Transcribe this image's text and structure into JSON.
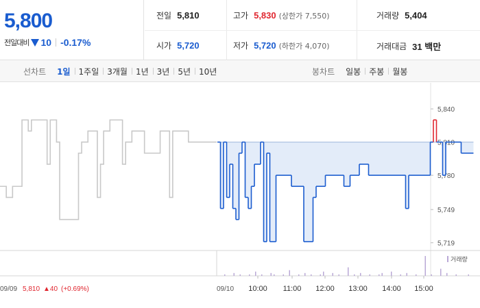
{
  "quote": {
    "price": "5,800",
    "change_label": "전일대비",
    "change_value": "10",
    "change_pct": "-0.17%",
    "items": [
      {
        "label": "전일",
        "value": "5,810"
      },
      {
        "label": "고가",
        "value": "5,830",
        "sub": "(상한가 7,550)"
      },
      {
        "label": "거래량",
        "value": "5,404"
      },
      {
        "label": "시가",
        "value": "5,720"
      },
      {
        "label": "저가",
        "value": "5,720",
        "sub": "(하한가 4,070)"
      },
      {
        "label": "거래대금",
        "value": "31 백만"
      }
    ]
  },
  "line_tabs": {
    "title": "선차트",
    "items": [
      "1일",
      "1주일",
      "3개월",
      "1년",
      "3년",
      "5년",
      "10년"
    ],
    "active": 0
  },
  "candle_tabs": {
    "title": "봉차트",
    "items": [
      "일봉",
      "주봉",
      "월봉"
    ]
  },
  "colors": {
    "up": "#e0262f",
    "down": "#1a5ccf",
    "prev": "#c8c8c8",
    "fill": "#e3ecf9",
    "volume": "#b9a8d6"
  },
  "chart_data": {
    "type": "line",
    "yticks": [
      5840,
      5810,
      5780,
      5749,
      5719
    ],
    "ytick_labels": [
      "5,840",
      "5,810",
      "5,780",
      "5,749",
      "5,719"
    ],
    "ylim": [
      5712,
      5845
    ],
    "baseline": 5810,
    "volume_label": "거래량",
    "prev_day": {
      "label": "09/09",
      "close": "5,810",
      "change": "▲40",
      "change_pct": "(+0.69%)",
      "values": [
        5770,
        5770,
        5760,
        5760,
        5770,
        5770,
        5770,
        5830,
        5830,
        5820,
        5830,
        5830,
        5830,
        5830,
        5830,
        5790,
        5830,
        5830,
        5810,
        5740,
        5740,
        5740,
        5740,
        5740,
        5740,
        5800,
        5810,
        5810,
        5820,
        5820,
        5820,
        5760,
        5790,
        5820,
        5820,
        5830,
        5830,
        5830,
        5830,
        5790,
        5810,
        5810,
        5820,
        5820,
        5820,
        5820,
        5800,
        5800,
        5800,
        5800,
        5800,
        5820,
        5820,
        5820,
        5760,
        5820,
        5820,
        5820,
        5820,
        5820,
        5810,
        5810,
        5810,
        5810,
        5810,
        5810,
        5810,
        5810,
        5810
      ]
    },
    "today": {
      "label": "09/10",
      "times": [
        "10:00",
        "11:00",
        "12:00",
        "13:00",
        "14:00",
        "15:00"
      ],
      "values": [
        5810,
        5750,
        5810,
        5760,
        5790,
        5750,
        5740,
        5800,
        5810,
        5760,
        5750,
        5770,
        5790,
        5790,
        5810,
        5720,
        5800,
        5720,
        5720,
        5780,
        5780,
        5780,
        5780,
        5780,
        5770,
        5770,
        5770,
        5770,
        5720,
        5720,
        5720,
        5760,
        5770,
        5770,
        5770,
        5780,
        5780,
        5780,
        5780,
        5780,
        5780,
        5770,
        5770,
        5780,
        5780,
        5780,
        5790,
        5790,
        5790,
        5780,
        5780,
        5780,
        5780,
        5780,
        5780,
        5780,
        5780,
        5780,
        5780,
        5780,
        5780,
        5750,
        5780,
        5780,
        5780,
        5780,
        5780,
        5780,
        5780,
        5810,
        5830,
        5810,
        5810,
        5780,
        5810,
        5810,
        5810,
        5810,
        5810,
        5800,
        5800,
        5800,
        5800
      ]
    },
    "volume": [
      0,
      0,
      1,
      0,
      0,
      2,
      0,
      1,
      0,
      0,
      1,
      0,
      3,
      0,
      1,
      0,
      0,
      2,
      1,
      0,
      0,
      1,
      0,
      4,
      0,
      0,
      1,
      0,
      2,
      0,
      1,
      0,
      0,
      1,
      3,
      0,
      0,
      2,
      0,
      1,
      0,
      0,
      6,
      0,
      1,
      0,
      2,
      0,
      0,
      1,
      0,
      0,
      1,
      2,
      0,
      0,
      3,
      0,
      0,
      1,
      0,
      2,
      0,
      0,
      1,
      0,
      0,
      14,
      0,
      1,
      0,
      0,
      5,
      0,
      2,
      0,
      0,
      1,
      0,
      0,
      0,
      1,
      0
    ]
  }
}
